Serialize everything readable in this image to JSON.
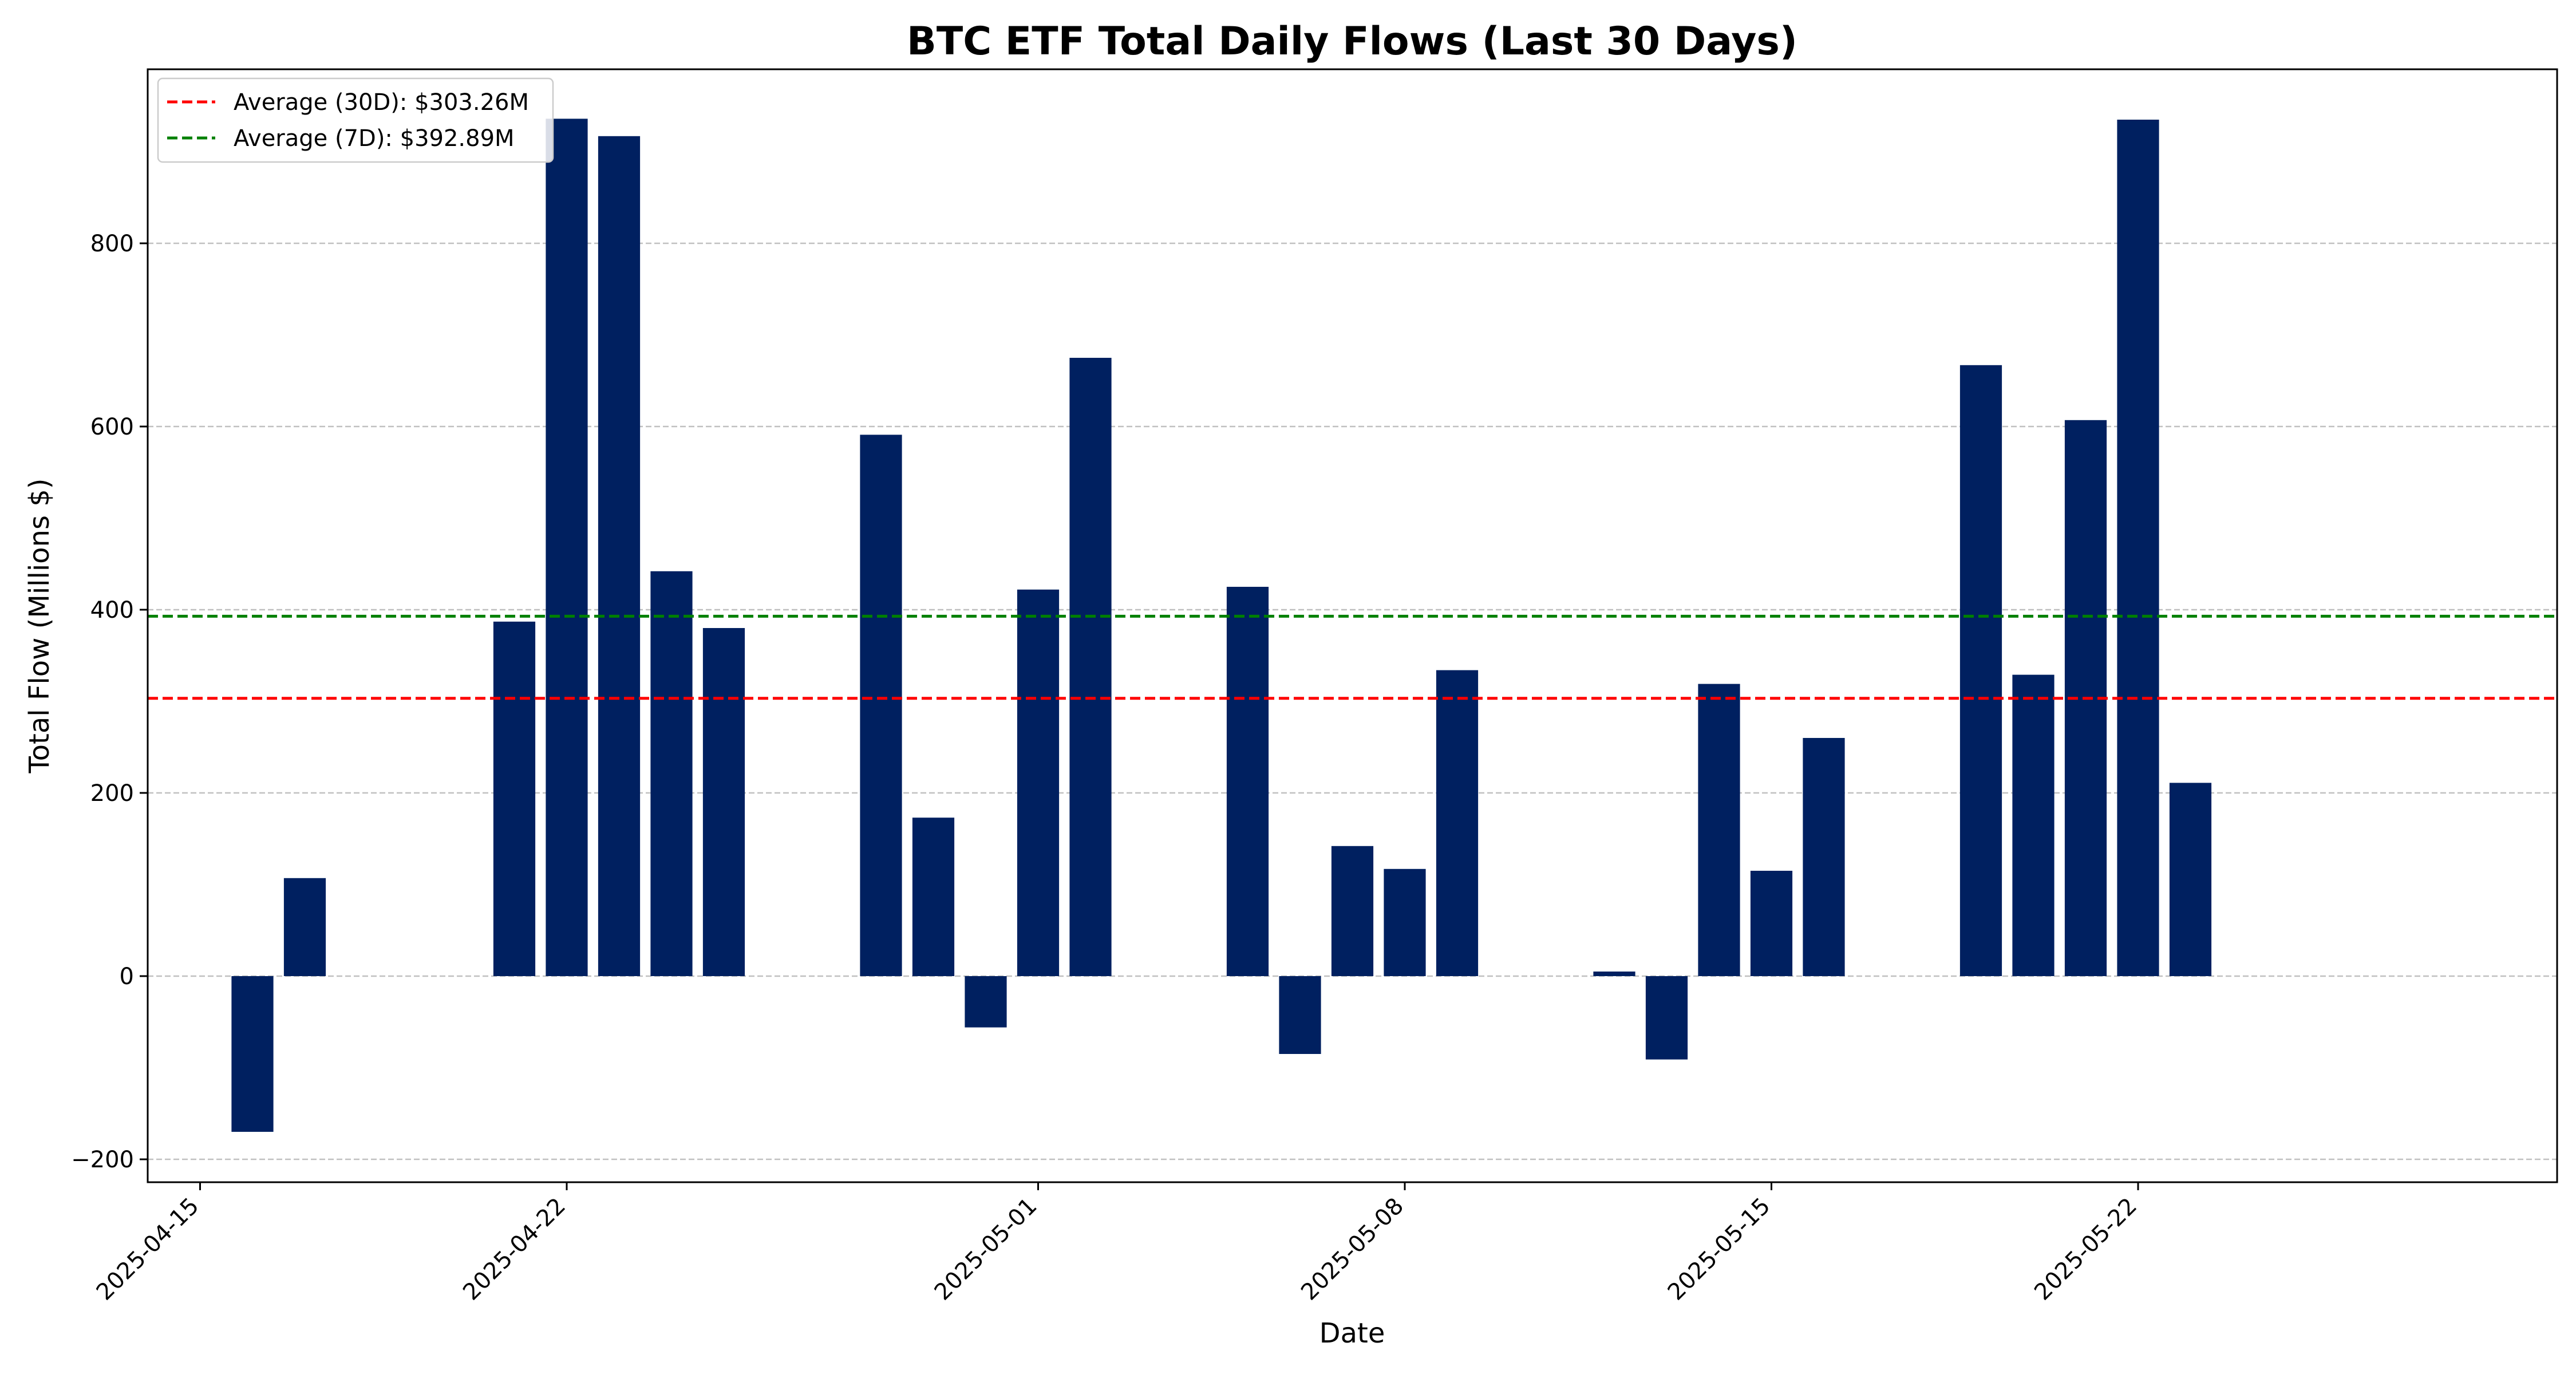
{
  "chart_data": {
    "type": "bar",
    "title": "BTC ETF Total Daily Flows (Last 30 Days)",
    "xlabel": "Date",
    "ylabel": "Total Flow (Millions $)",
    "x_range": [
      "2025-04-14",
      "2025-05-30"
    ],
    "ylim": [
      -225,
      990
    ],
    "yticks": [
      -200,
      0,
      200,
      400,
      600,
      800
    ],
    "ytick_labels": [
      "−200",
      "0",
      "200",
      "400",
      "600",
      "800"
    ],
    "xticks": [
      "2025-04-15",
      "2025-04-22",
      "2025-05-01",
      "2025-05-08",
      "2025-05-15",
      "2025-05-22"
    ],
    "grid": "y dashed",
    "legend_position": "top-left",
    "bar_color": "#002060",
    "bars": [
      {
        "date": "2025-04-16",
        "value": -170
      },
      {
        "date": "2025-04-17",
        "value": 107
      },
      {
        "date": "2025-04-21",
        "value": 387
      },
      {
        "date": "2025-04-22",
        "value": 936
      },
      {
        "date": "2025-04-23",
        "value": 917
      },
      {
        "date": "2025-04-24",
        "value": 442
      },
      {
        "date": "2025-04-25",
        "value": 380
      },
      {
        "date": "2025-04-28",
        "value": 591
      },
      {
        "date": "2025-04-29",
        "value": 173
      },
      {
        "date": "2025-04-30",
        "value": -56
      },
      {
        "date": "2025-05-01",
        "value": 422
      },
      {
        "date": "2025-05-02",
        "value": 675
      },
      {
        "date": "2025-05-05",
        "value": 425
      },
      {
        "date": "2025-05-06",
        "value": -85
      },
      {
        "date": "2025-05-07",
        "value": 142
      },
      {
        "date": "2025-05-08",
        "value": 117
      },
      {
        "date": "2025-05-09",
        "value": 334
      },
      {
        "date": "2025-05-12",
        "value": 5
      },
      {
        "date": "2025-05-13",
        "value": -91
      },
      {
        "date": "2025-05-14",
        "value": 319
      },
      {
        "date": "2025-05-15",
        "value": 115
      },
      {
        "date": "2025-05-16",
        "value": 260
      },
      {
        "date": "2025-05-19",
        "value": 667
      },
      {
        "date": "2025-05-20",
        "value": 329
      },
      {
        "date": "2025-05-21",
        "value": 607
      },
      {
        "date": "2025-05-22",
        "value": 935
      },
      {
        "date": "2025-05-23",
        "value": 211
      }
    ],
    "reference_lines": [
      {
        "name": "Average (30D): $303.26M",
        "value": 303.26,
        "color": "#ff0000"
      },
      {
        "name": "Average (7D): $392.89M",
        "value": 392.89,
        "color": "#008000"
      }
    ]
  }
}
